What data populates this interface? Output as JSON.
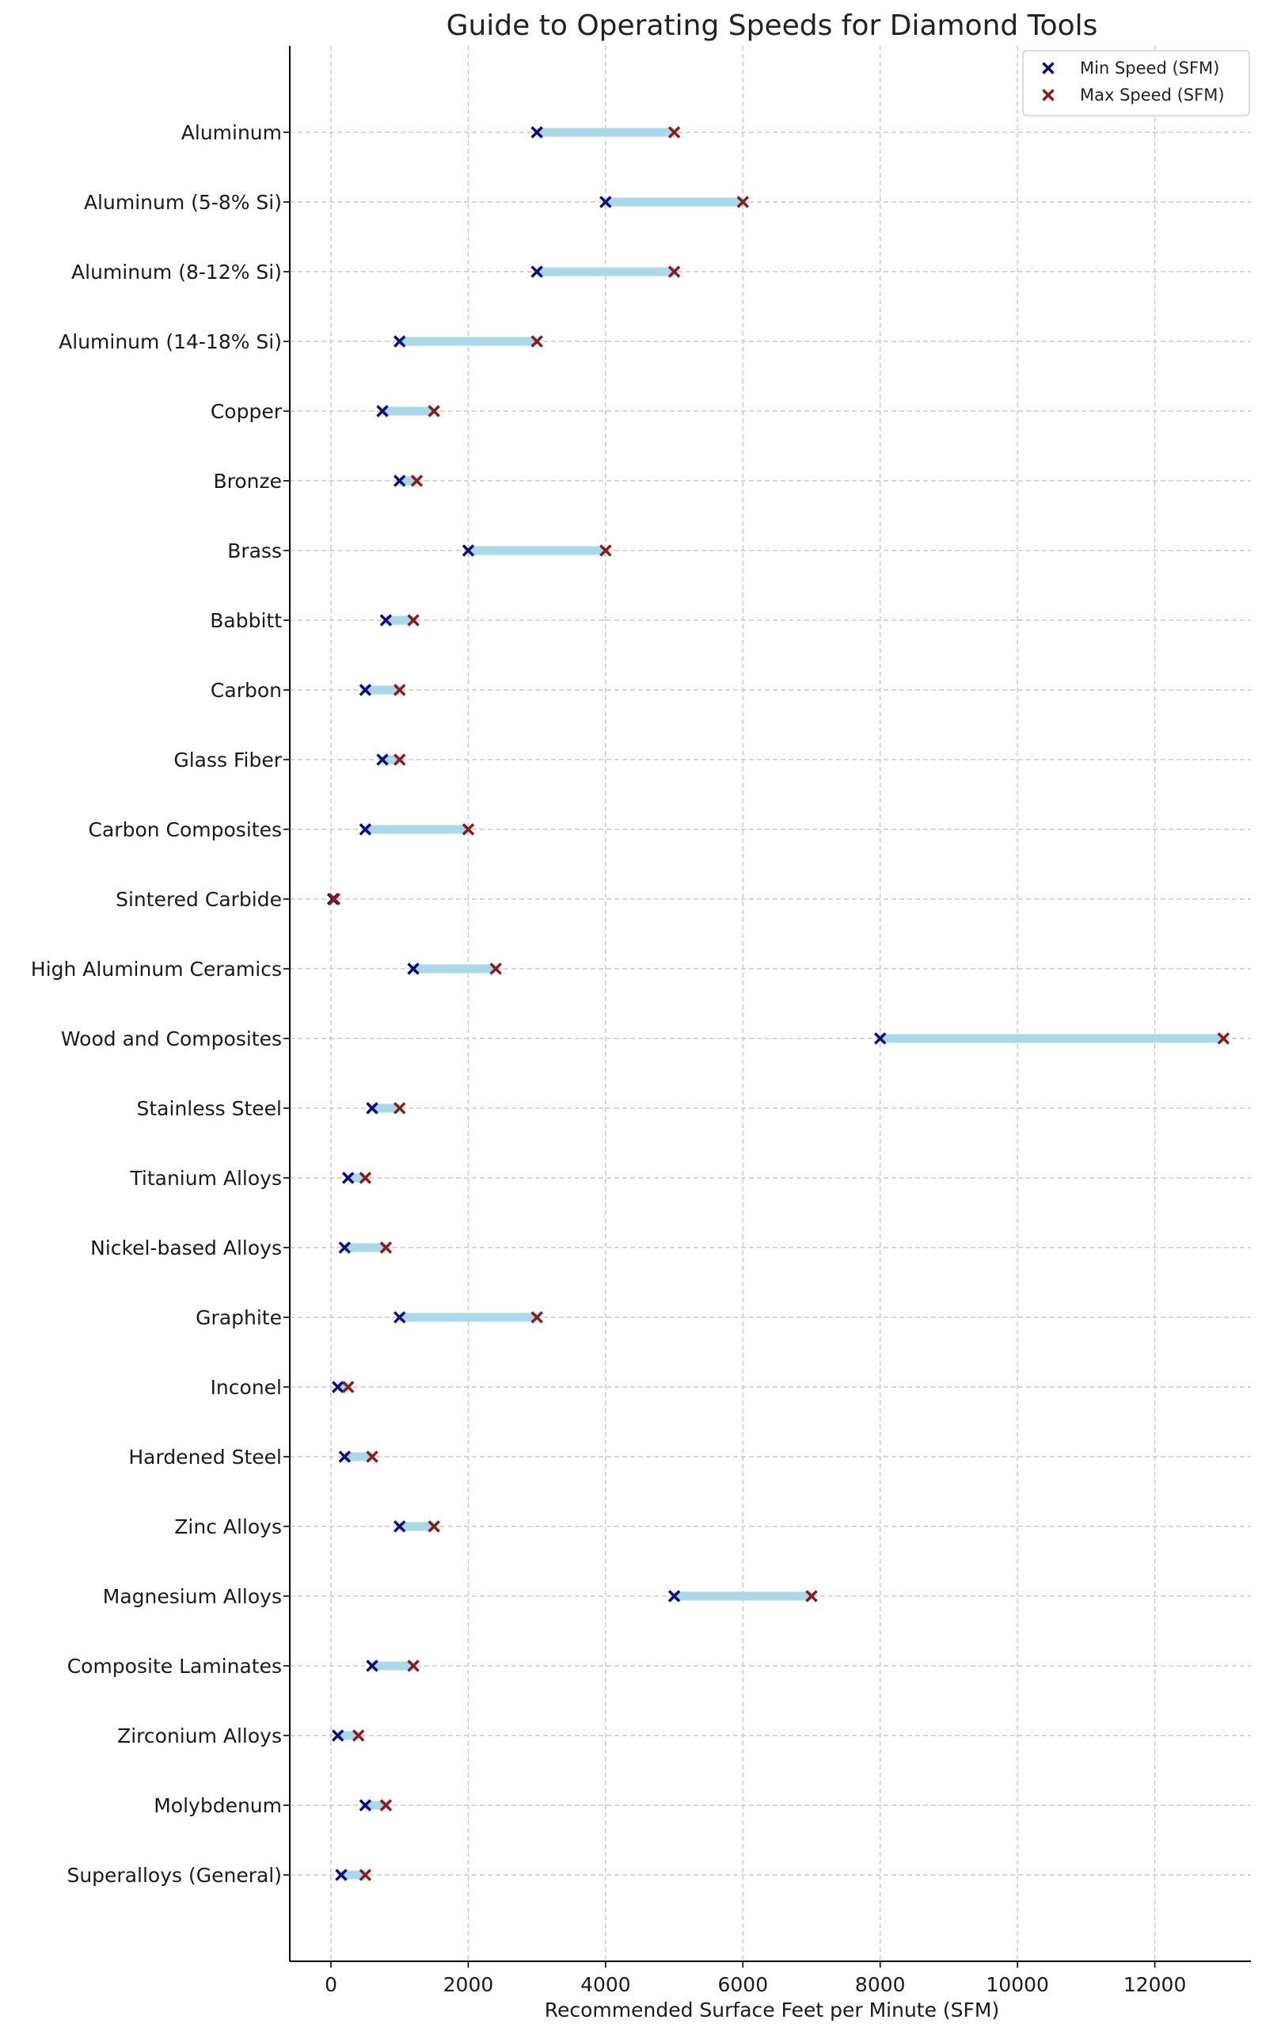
{
  "chart_data": {
    "type": "dumbbell",
    "title": "Guide to Operating Speeds for Diamond Tools",
    "xlabel": "Recommended Surface Feet per Minute (SFM)",
    "ylabel": "",
    "xlim": [
      -600,
      13400
    ],
    "xticks": [
      0,
      2000,
      4000,
      6000,
      8000,
      10000,
      12000
    ],
    "grid": true,
    "legend_position": "top-right",
    "colors": {
      "min": "#0b0b7a",
      "max": "#8b1a1a",
      "range": "#a8d8ea"
    },
    "series": [
      {
        "name": "Min Speed (SFM)",
        "key": "min"
      },
      {
        "name": "Max Speed (SFM)",
        "key": "max"
      }
    ],
    "categories": [
      "Aluminum",
      "Aluminum (5-8% Si)",
      "Aluminum (8-12% Si)",
      "Aluminum (14-18% Si)",
      "Copper",
      "Bronze",
      "Brass",
      "Babbitt",
      "Carbon",
      "Glass Fiber",
      "Carbon Composites",
      "Sintered Carbide",
      "High Aluminum Ceramics",
      "Wood and Composites",
      "Stainless Steel",
      "Titanium Alloys",
      "Nickel-based Alloys",
      "Graphite",
      "Inconel",
      "Hardened Steel",
      "Zinc Alloys",
      "Magnesium Alloys",
      "Composite Laminates",
      "Zirconium Alloys",
      "Molybdenum",
      "Superalloys (General)"
    ],
    "min": [
      3000,
      4000,
      3000,
      1000,
      750,
      1000,
      2000,
      800,
      500,
      750,
      500,
      30,
      1200,
      8000,
      600,
      250,
      200,
      1000,
      100,
      200,
      1000,
      5000,
      600,
      100,
      500,
      150
    ],
    "max": [
      5000,
      6000,
      5000,
      3000,
      1500,
      1250,
      4000,
      1200,
      1000,
      1000,
      2000,
      50,
      2400,
      13000,
      1000,
      500,
      800,
      3000,
      250,
      600,
      1500,
      7000,
      1200,
      400,
      800,
      500
    ]
  }
}
